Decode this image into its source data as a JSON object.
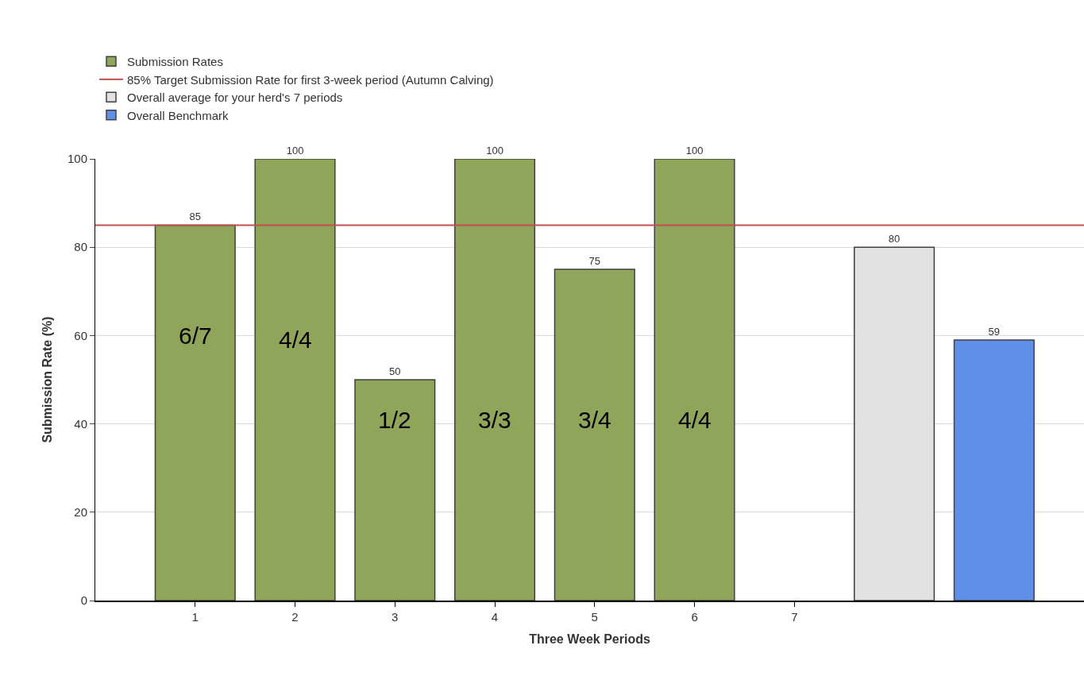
{
  "chart_data": {
    "type": "bar",
    "xlabel": "Three Week Periods",
    "ylabel": "Submission Rate (%)",
    "categories": [
      "1",
      "2",
      "3",
      "4",
      "5",
      "6",
      "7",
      null,
      null
    ],
    "series": [
      {
        "name": "Submission Rates",
        "color": "#8fa65a",
        "values": [
          85,
          100,
          50,
          100,
          75,
          100,
          null,
          null,
          null
        ]
      },
      {
        "name": "Overall average for your herd's 7 periods",
        "color": "#e2e2e2",
        "values": [
          null,
          null,
          null,
          null,
          null,
          null,
          null,
          80,
          null
        ]
      },
      {
        "name": "Overall Benchmark",
        "color": "#5f8fe6",
        "values": [
          null,
          null,
          null,
          null,
          null,
          null,
          null,
          null,
          59
        ]
      }
    ],
    "ref_lines": [
      {
        "axis": "y",
        "value": 85,
        "label": "85% Target Submission Rate for first 3-week period (Autumn Calving)",
        "color": "#c0504d",
        "line_style": "solid"
      }
    ],
    "annotations": [
      "6/7",
      "4/4",
      "1/2",
      "3/3",
      "3/4",
      "4/4"
    ],
    "ylim": [
      0,
      100
    ],
    "yticks": [
      0,
      20,
      40,
      60,
      80,
      100
    ],
    "grid": "y",
    "legend": "top left",
    "data_labels": true
  }
}
